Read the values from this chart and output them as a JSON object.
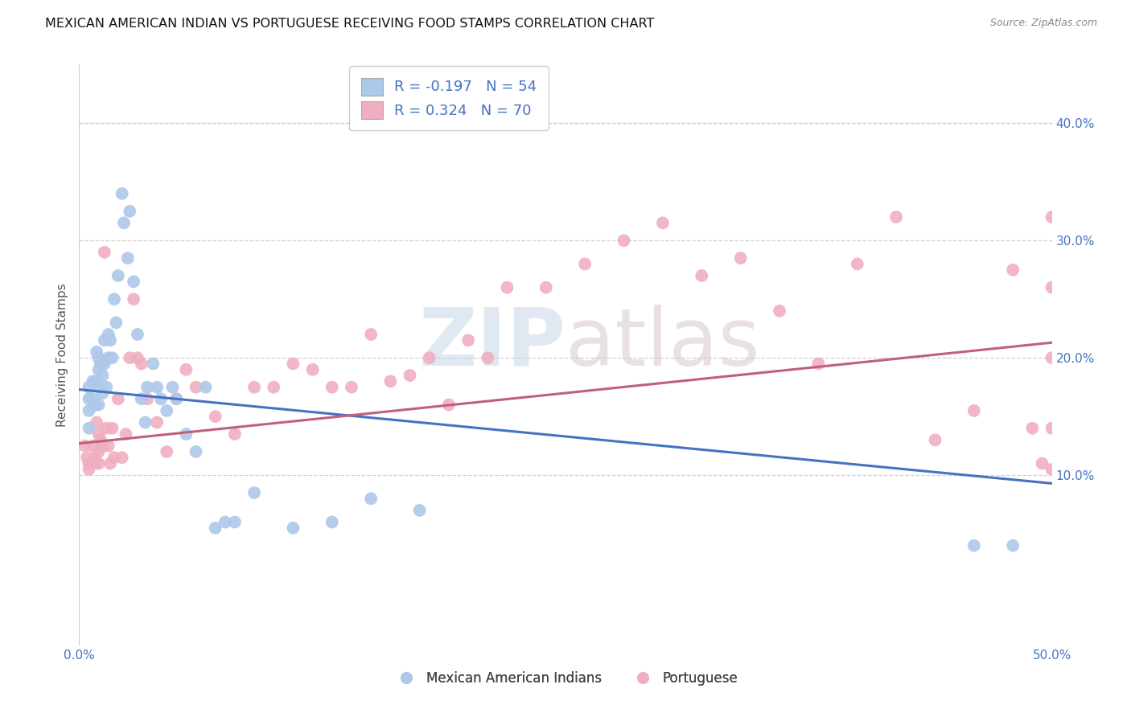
{
  "title": "MEXICAN AMERICAN INDIAN VS PORTUGUESE RECEIVING FOOD STAMPS CORRELATION CHART",
  "source": "Source: ZipAtlas.com",
  "ylabel": "Receiving Food Stamps",
  "xmin": 0.0,
  "xmax": 0.5,
  "ymin": -0.045,
  "ymax": 0.45,
  "xticks": [
    0.0,
    0.1,
    0.2,
    0.3,
    0.4,
    0.5
  ],
  "xtick_labels": [
    "0.0%",
    "",
    "",
    "",
    "",
    "50.0%"
  ],
  "yticks_right": [
    0.1,
    0.2,
    0.3,
    0.4
  ],
  "ytick_right_labels": [
    "10.0%",
    "20.0%",
    "30.0%",
    "40.0%"
  ],
  "blue_label": "Mexican American Indians",
  "pink_label": "Portuguese",
  "blue_R": "-0.197",
  "blue_N": "54",
  "pink_R": "0.324",
  "pink_N": "70",
  "blue_color": "#adc8e8",
  "pink_color": "#f0afc0",
  "blue_line_color": "#4472c4",
  "pink_line_color": "#c0607a",
  "blue_line_x0": 0.0,
  "blue_line_y0": 0.173,
  "blue_line_x1": 0.5,
  "blue_line_y1": 0.093,
  "pink_line_x0": 0.0,
  "pink_line_y0": 0.127,
  "pink_line_x1": 0.5,
  "pink_line_y1": 0.213,
  "blue_x": [
    0.005,
    0.005,
    0.005,
    0.005,
    0.007,
    0.007,
    0.008,
    0.008,
    0.009,
    0.01,
    0.01,
    0.01,
    0.01,
    0.011,
    0.012,
    0.012,
    0.013,
    0.013,
    0.014,
    0.015,
    0.015,
    0.016,
    0.017,
    0.018,
    0.019,
    0.02,
    0.022,
    0.023,
    0.025,
    0.026,
    0.028,
    0.03,
    0.032,
    0.034,
    0.035,
    0.038,
    0.04,
    0.042,
    0.045,
    0.048,
    0.05,
    0.055,
    0.06,
    0.065,
    0.07,
    0.075,
    0.08,
    0.09,
    0.11,
    0.13,
    0.15,
    0.175,
    0.46,
    0.48
  ],
  "blue_y": [
    0.175,
    0.165,
    0.155,
    0.14,
    0.18,
    0.165,
    0.18,
    0.16,
    0.205,
    0.2,
    0.19,
    0.175,
    0.16,
    0.195,
    0.185,
    0.17,
    0.215,
    0.195,
    0.175,
    0.22,
    0.2,
    0.215,
    0.2,
    0.25,
    0.23,
    0.27,
    0.34,
    0.315,
    0.285,
    0.325,
    0.265,
    0.22,
    0.165,
    0.145,
    0.175,
    0.195,
    0.175,
    0.165,
    0.155,
    0.175,
    0.165,
    0.135,
    0.12,
    0.175,
    0.055,
    0.06,
    0.06,
    0.085,
    0.055,
    0.06,
    0.08,
    0.07,
    0.04,
    0.04
  ],
  "pink_x": [
    0.003,
    0.004,
    0.005,
    0.005,
    0.006,
    0.007,
    0.007,
    0.008,
    0.008,
    0.009,
    0.01,
    0.01,
    0.01,
    0.011,
    0.012,
    0.013,
    0.014,
    0.015,
    0.016,
    0.017,
    0.018,
    0.02,
    0.022,
    0.024,
    0.026,
    0.028,
    0.03,
    0.032,
    0.035,
    0.04,
    0.045,
    0.05,
    0.055,
    0.06,
    0.07,
    0.08,
    0.09,
    0.1,
    0.11,
    0.12,
    0.13,
    0.14,
    0.15,
    0.16,
    0.17,
    0.18,
    0.19,
    0.2,
    0.21,
    0.22,
    0.24,
    0.26,
    0.28,
    0.3,
    0.32,
    0.34,
    0.36,
    0.38,
    0.4,
    0.42,
    0.44,
    0.46,
    0.48,
    0.49,
    0.495,
    0.5,
    0.5,
    0.5,
    0.5,
    0.5
  ],
  "pink_y": [
    0.125,
    0.115,
    0.11,
    0.105,
    0.11,
    0.125,
    0.11,
    0.11,
    0.115,
    0.145,
    0.135,
    0.12,
    0.11,
    0.13,
    0.125,
    0.29,
    0.14,
    0.125,
    0.11,
    0.14,
    0.115,
    0.165,
    0.115,
    0.135,
    0.2,
    0.25,
    0.2,
    0.195,
    0.165,
    0.145,
    0.12,
    0.165,
    0.19,
    0.175,
    0.15,
    0.135,
    0.175,
    0.175,
    0.195,
    0.19,
    0.175,
    0.175,
    0.22,
    0.18,
    0.185,
    0.2,
    0.16,
    0.215,
    0.2,
    0.26,
    0.26,
    0.28,
    0.3,
    0.315,
    0.27,
    0.285,
    0.24,
    0.195,
    0.28,
    0.32,
    0.13,
    0.155,
    0.275,
    0.14,
    0.11,
    0.32,
    0.105,
    0.26,
    0.14,
    0.2
  ],
  "watermark_zip": "ZIP",
  "watermark_atlas": "atlas",
  "background_color": "#ffffff",
  "grid_color": "#d0d0d0",
  "title_color": "#111111",
  "source_color": "#888888",
  "ylabel_color": "#555555",
  "tick_color": "#4472c4",
  "legend_edge_color": "#cccccc",
  "legend_label_color": "#4472c4"
}
